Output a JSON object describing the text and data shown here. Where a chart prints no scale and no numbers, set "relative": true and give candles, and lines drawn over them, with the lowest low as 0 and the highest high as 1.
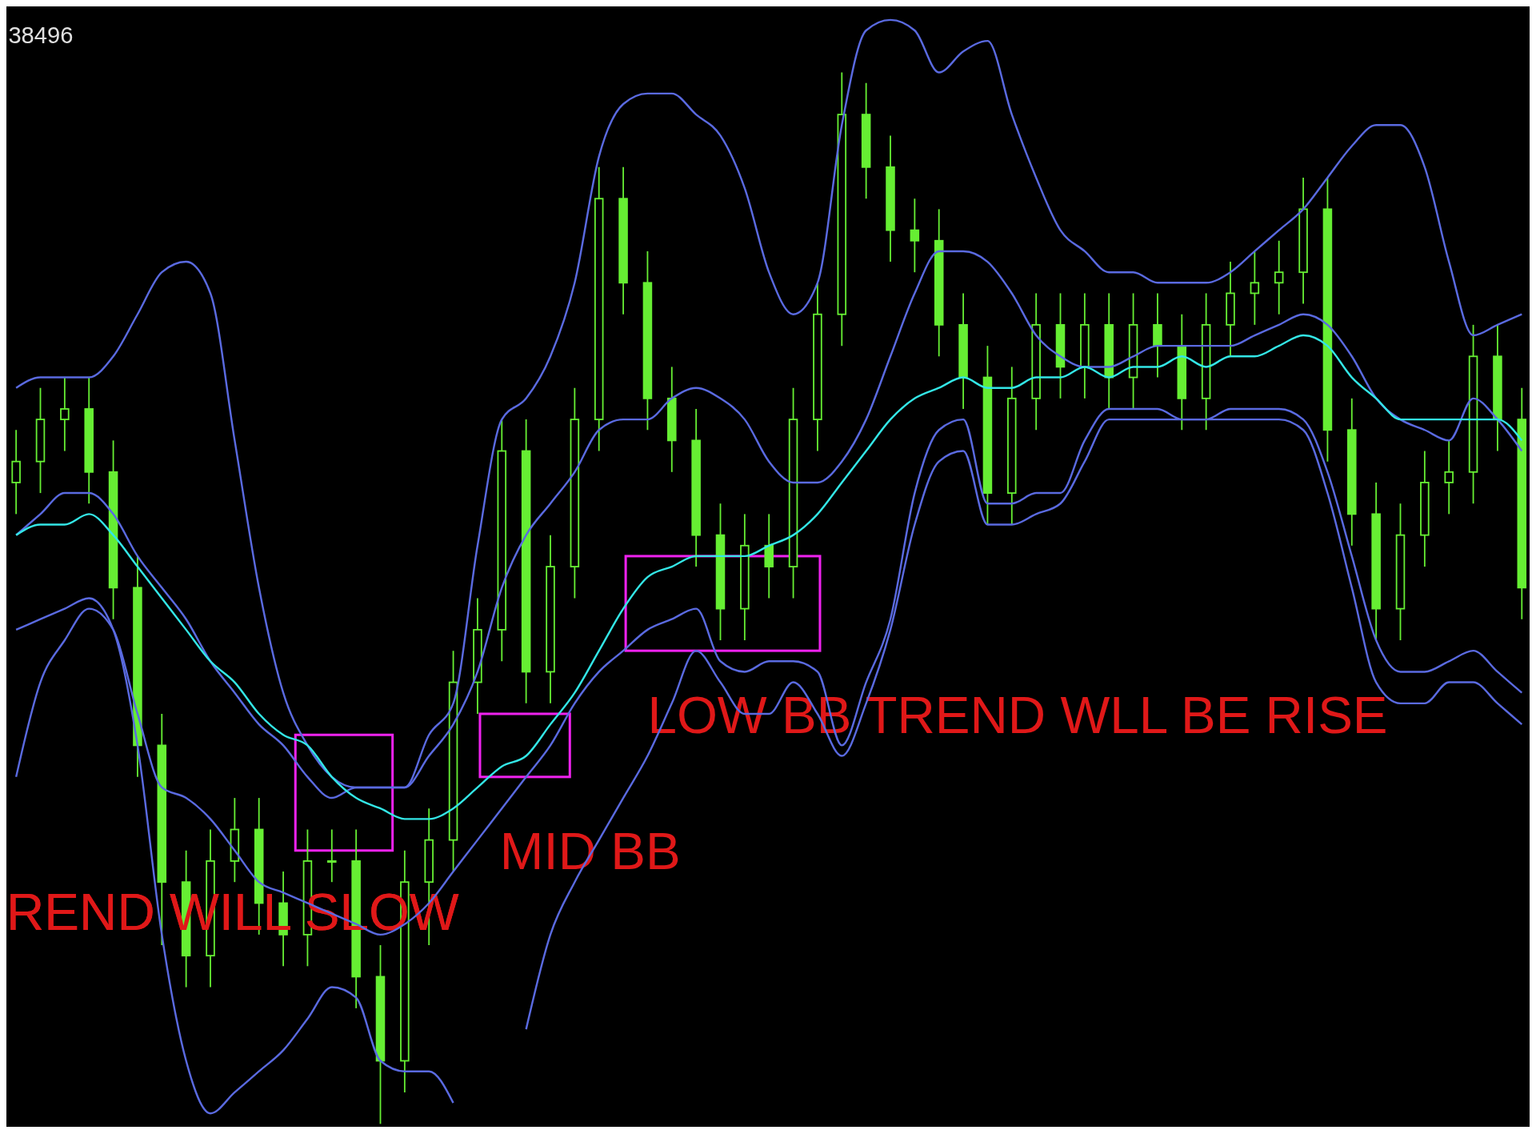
{
  "chart_data": {
    "type": "candlestick",
    "relative": true,
    "color": "#66ee33",
    "annotations": [
      "38496",
      "REND WILL SLOW",
      "MID BB",
      "LOW BB TREND WLL BE RISE"
    ],
    "categories": [
      null,
      null,
      null,
      null,
      null,
      null,
      null,
      null,
      null,
      null,
      null,
      null,
      null,
      null,
      null,
      null,
      null,
      null,
      null,
      null,
      null,
      null,
      null,
      null,
      null,
      null,
      null,
      null,
      null,
      null,
      null,
      null,
      null,
      null,
      null,
      null,
      null,
      null,
      null,
      null,
      null,
      null,
      null,
      null,
      null,
      null,
      null,
      null,
      null,
      null,
      null,
      null,
      null,
      null,
      null,
      null,
      null,
      null,
      null,
      null,
      null,
      null,
      null
    ],
    "ohlc": [
      [
        0.61,
        0.66,
        0.58,
        0.63
      ],
      [
        0.63,
        0.7,
        0.6,
        0.67
      ],
      [
        0.67,
        0.71,
        0.64,
        0.68
      ],
      [
        0.68,
        0.71,
        0.59,
        0.62
      ],
      [
        0.62,
        0.65,
        0.48,
        0.51
      ],
      [
        0.51,
        0.54,
        0.33,
        0.36
      ],
      [
        0.36,
        0.39,
        0.17,
        0.23
      ],
      [
        0.23,
        0.26,
        0.13,
        0.16
      ],
      [
        0.16,
        0.28,
        0.13,
        0.25
      ],
      [
        0.25,
        0.31,
        0.23,
        0.28
      ],
      [
        0.28,
        0.31,
        0.18,
        0.21
      ],
      [
        0.21,
        0.24,
        0.15,
        0.18
      ],
      [
        0.18,
        0.28,
        0.15,
        0.25
      ],
      [
        0.25,
        0.28,
        0.23,
        0.25
      ],
      [
        0.25,
        0.28,
        0.11,
        0.14
      ],
      [
        0.14,
        0.17,
        0,
        0.06
      ],
      [
        0.06,
        0.26,
        0.03,
        0.23
      ],
      [
        0.23,
        0.3,
        0.17,
        0.27
      ],
      [
        0.27,
        0.45,
        0.24,
        0.42
      ],
      [
        0.42,
        0.5,
        0.39,
        0.47
      ],
      [
        0.47,
        0.67,
        0.44,
        0.64
      ],
      [
        0.64,
        0.67,
        0.4,
        0.43
      ],
      [
        0.43,
        0.56,
        0.4,
        0.53
      ],
      [
        0.53,
        0.7,
        0.5,
        0.67
      ],
      [
        0.67,
        0.91,
        0.64,
        0.88
      ],
      [
        0.88,
        0.91,
        0.77,
        0.8
      ],
      [
        0.8,
        0.83,
        0.66,
        0.69
      ],
      [
        0.69,
        0.72,
        0.62,
        0.65
      ],
      [
        0.65,
        0.68,
        0.53,
        0.56
      ],
      [
        0.56,
        0.59,
        0.46,
        0.49
      ],
      [
        0.49,
        0.58,
        0.46,
        0.55
      ],
      [
        0.55,
        0.58,
        0.5,
        0.53
      ],
      [
        0.53,
        0.7,
        0.5,
        0.67
      ],
      [
        0.67,
        0.8,
        0.64,
        0.77
      ],
      [
        0.77,
        1,
        0.74,
        0.96
      ],
      [
        0.96,
        0.99,
        0.88,
        0.91
      ],
      [
        0.91,
        0.94,
        0.82,
        0.85
      ],
      [
        0.85,
        0.88,
        0.81,
        0.84
      ],
      [
        0.84,
        0.87,
        0.73,
        0.76
      ],
      [
        0.76,
        0.79,
        0.68,
        0.71
      ],
      [
        0.71,
        0.74,
        0.57,
        0.6
      ],
      [
        0.6,
        0.72,
        0.57,
        0.69
      ],
      [
        0.69,
        0.79,
        0.66,
        0.76
      ],
      [
        0.76,
        0.79,
        0.69,
        0.72
      ],
      [
        0.72,
        0.79,
        0.69,
        0.76
      ],
      [
        0.76,
        0.79,
        0.68,
        0.71
      ],
      [
        0.71,
        0.79,
        0.68,
        0.76
      ],
      [
        0.76,
        0.79,
        0.71,
        0.74
      ],
      [
        0.74,
        0.77,
        0.66,
        0.69
      ],
      [
        0.69,
        0.79,
        0.66,
        0.76
      ],
      [
        0.76,
        0.82,
        0.73,
        0.79
      ],
      [
        0.79,
        0.83,
        0.76,
        0.8
      ],
      [
        0.8,
        0.84,
        0.77,
        0.81
      ],
      [
        0.81,
        0.9,
        0.78,
        0.87
      ],
      [
        0.87,
        0.9,
        0.63,
        0.66
      ],
      [
        0.66,
        0.69,
        0.55,
        0.58
      ],
      [
        0.58,
        0.61,
        0.46,
        0.49
      ],
      [
        0.49,
        0.59,
        0.46,
        0.56
      ],
      [
        0.56,
        0.64,
        0.53,
        0.61
      ],
      [
        0.61,
        0.65,
        0.58,
        0.62
      ],
      [
        0.62,
        0.76,
        0.59,
        0.73
      ],
      [
        0.73,
        0.76,
        0.64,
        0.67
      ],
      [
        0.67,
        0.7,
        0.48,
        0.51
      ]
    ],
    "series": [
      {
        "type": "line",
        "color": "#5a6ae0",
        "values": [
          0.7,
          0.71,
          0.71,
          0.71,
          0.73,
          0.77,
          0.81,
          0.82,
          0.79,
          0.65,
          0.51,
          0.41,
          0.36,
          0.33,
          0.32,
          0.32,
          0.32,
          0.37,
          0.4,
          0.55,
          0.67,
          0.69,
          0.73,
          0.8,
          0.92,
          0.97,
          0.98,
          0.98,
          0.96,
          0.94,
          0.89,
          0.81,
          0.77,
          0.8,
          0.95,
          1.04,
          1.05,
          1.04,
          1.0,
          1.02,
          1.03,
          0.96,
          0.9,
          0.85,
          0.83,
          0.81,
          0.81,
          0.8,
          0.8,
          0.8,
          0.81,
          0.83,
          0.85,
          0.87,
          0.9,
          0.93,
          0.95,
          0.95,
          0.91,
          0.82,
          0.75,
          0.76,
          0.77
        ]
      },
      {
        "type": "line",
        "color": "#5a6ae0",
        "values": [
          0.56,
          0.58,
          0.6,
          0.6,
          0.58,
          0.54,
          0.51,
          0.48,
          0.44,
          0.41,
          0.38,
          0.36,
          0.33,
          0.31,
          0.32,
          0.32,
          0.32,
          0.35,
          0.38,
          0.43,
          0.51,
          0.56,
          0.59,
          0.62,
          0.66,
          0.67,
          0.67,
          0.69,
          0.7,
          0.69,
          0.67,
          0.63,
          0.61,
          0.61,
          0.63,
          0.67,
          0.73,
          0.79,
          0.83,
          0.83,
          0.82,
          0.79,
          0.75,
          0.73,
          0.72,
          0.72,
          0.73,
          0.74,
          0.74,
          0.74,
          0.74,
          0.75,
          0.76,
          0.77,
          0.76,
          0.73,
          0.69,
          0.67,
          0.66,
          0.65,
          0.69,
          0.67,
          0.64
        ]
      },
      {
        "type": "line",
        "color": "#33e6e6",
        "values": [
          0.56,
          0.57,
          0.57,
          0.58,
          0.56,
          0.53,
          0.5,
          0.47,
          0.44,
          0.42,
          0.39,
          0.37,
          0.36,
          0.33,
          0.31,
          0.3,
          0.29,
          0.29,
          0.3,
          0.32,
          0.34,
          0.35,
          0.38,
          0.41,
          0.45,
          0.49,
          0.52,
          0.53,
          0.54,
          0.54,
          0.54,
          0.55,
          0.56,
          0.58,
          0.61,
          0.64,
          0.67,
          0.69,
          0.7,
          0.71,
          0.7,
          0.7,
          0.71,
          0.71,
          0.72,
          0.71,
          0.72,
          0.72,
          0.73,
          0.72,
          0.73,
          0.73,
          0.74,
          0.75,
          0.74,
          0.71,
          0.69,
          0.67,
          0.67,
          0.67,
          0.67,
          0.67,
          0.65
        ]
      },
      {
        "type": "line",
        "color": "#5a6ae0",
        "values": [
          0.33,
          0.42,
          0.46,
          0.49,
          0.47,
          0.39,
          0.32,
          0.31,
          0.29,
          0.26,
          0.23,
          0.22,
          0.21,
          0.2,
          0.19,
          0.18,
          0.19,
          0.21,
          0.24,
          0.27,
          0.3,
          0.33,
          0.36,
          0.4,
          0.43,
          0.45,
          0.47,
          0.48,
          0.49,
          0.44,
          0.43,
          0.44,
          0.44,
          0.43,
          0.36,
          0.42,
          0.48,
          0.6,
          0.66,
          0.67,
          0.59,
          0.59,
          0.6,
          0.6,
          0.65,
          0.68,
          0.68,
          0.68,
          0.67,
          0.67,
          0.68,
          0.68,
          0.68,
          0.67,
          0.62,
          0.54,
          0.46,
          0.43,
          0.43,
          0.44,
          0.45,
          0.43,
          0.41
        ]
      },
      {
        "type": "line",
        "color": "#5a6ae0",
        "values": [
          0.47,
          0.48,
          0.49,
          0.5,
          0.47,
          0.36,
          0.18,
          0.06,
          0.01,
          0.03,
          0.05,
          0.07,
          0.1,
          0.13,
          0.12,
          0.06,
          0.05,
          0.05,
          0.02,
          null,
          null,
          0.09,
          0.18,
          0.23,
          0.27,
          0.31,
          0.35,
          0.4,
          0.45,
          0.42,
          0.39,
          0.39,
          0.42,
          0.39,
          0.35,
          0.4,
          0.47,
          0.57,
          0.63,
          0.64,
          0.57,
          0.57,
          0.58,
          0.59,
          0.63,
          0.67,
          0.67,
          0.67,
          0.67,
          0.67,
          0.67,
          0.67,
          0.67,
          0.66,
          0.6,
          0.51,
          0.42,
          0.4,
          0.4,
          0.42,
          0.42,
          0.4,
          0.38
        ]
      }
    ]
  }
}
